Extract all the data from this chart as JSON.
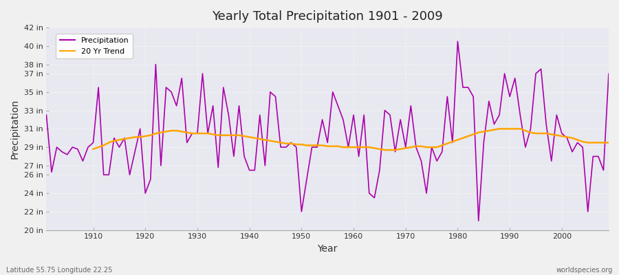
{
  "title": "Yearly Total Precipitation 1901 - 2009",
  "xlabel": "Year",
  "ylabel": "Precipitation",
  "subtitle": "Latitude 55.75 Longitude 22.25",
  "watermark": "worldspecies.org",
  "precip_color": "#aa00aa",
  "trend_color": "#FFA500",
  "bg_color": "#f0f0f0",
  "plot_bg_color": "#e8e8f0",
  "ylim": [
    20,
    42
  ],
  "yticks": [
    20,
    22,
    24,
    26,
    27,
    29,
    31,
    33,
    35,
    37,
    38,
    40,
    42
  ],
  "xticks": [
    1910,
    1920,
    1930,
    1940,
    1950,
    1960,
    1970,
    1980,
    1990,
    2000
  ],
  "xlim": [
    1901,
    2009
  ],
  "years": [
    1901,
    1902,
    1903,
    1904,
    1905,
    1906,
    1907,
    1908,
    1909,
    1910,
    1911,
    1912,
    1913,
    1914,
    1915,
    1916,
    1917,
    1918,
    1919,
    1920,
    1921,
    1922,
    1923,
    1924,
    1925,
    1926,
    1927,
    1928,
    1929,
    1930,
    1931,
    1932,
    1933,
    1934,
    1935,
    1936,
    1937,
    1938,
    1939,
    1940,
    1941,
    1942,
    1943,
    1944,
    1945,
    1946,
    1947,
    1948,
    1949,
    1950,
    1951,
    1952,
    1953,
    1954,
    1955,
    1956,
    1957,
    1958,
    1959,
    1960,
    1961,
    1962,
    1963,
    1964,
    1965,
    1966,
    1967,
    1968,
    1969,
    1970,
    1971,
    1972,
    1973,
    1974,
    1975,
    1976,
    1977,
    1978,
    1979,
    1980,
    1981,
    1982,
    1983,
    1984,
    1985,
    1986,
    1987,
    1988,
    1989,
    1990,
    1991,
    1992,
    1993,
    1994,
    1995,
    1996,
    1997,
    1998,
    1999,
    2000,
    2001,
    2002,
    2003,
    2004,
    2005,
    2006,
    2007,
    2008,
    2009
  ],
  "precip": [
    32.5,
    26.3,
    29.0,
    28.5,
    28.2,
    29.0,
    28.8,
    27.5,
    29.0,
    29.5,
    35.5,
    26.0,
    26.0,
    30.0,
    29.0,
    30.0,
    26.0,
    28.5,
    31.0,
    24.0,
    25.5,
    38.0,
    27.0,
    35.5,
    35.0,
    33.5,
    36.5,
    29.5,
    30.5,
    30.5,
    37.0,
    30.5,
    33.5,
    26.8,
    35.5,
    32.5,
    28.0,
    33.5,
    28.0,
    26.5,
    26.5,
    32.5,
    27.0,
    35.0,
    34.5,
    29.0,
    29.0,
    29.5,
    29.0,
    22.0,
    25.5,
    29.0,
    29.0,
    32.0,
    29.5,
    35.0,
    33.5,
    32.0,
    29.0,
    32.5,
    28.0,
    32.5,
    24.0,
    23.5,
    26.5,
    33.0,
    32.5,
    28.5,
    32.0,
    29.0,
    33.5,
    29.0,
    27.5,
    24.0,
    29.0,
    27.5,
    28.5,
    34.5,
    29.5,
    40.5,
    35.5,
    35.5,
    34.5,
    21.0,
    29.5,
    34.0,
    31.5,
    32.5,
    37.0,
    34.5,
    36.5,
    32.5,
    29.0,
    31.0,
    37.0,
    37.5,
    31.5,
    27.5,
    32.5,
    30.5,
    30.0,
    28.5,
    29.5,
    29.0,
    22.0,
    28.0,
    28.0,
    26.5,
    37.0
  ],
  "trend": [
    null,
    null,
    null,
    null,
    null,
    null,
    null,
    null,
    null,
    28.8,
    29.0,
    29.2,
    29.5,
    29.7,
    29.8,
    29.9,
    30.0,
    30.1,
    30.1,
    30.2,
    30.3,
    30.5,
    30.6,
    30.7,
    30.8,
    30.8,
    30.7,
    30.6,
    30.5,
    30.5,
    30.5,
    30.5,
    30.4,
    30.3,
    30.3,
    30.3,
    30.3,
    30.3,
    30.2,
    30.1,
    30.0,
    29.9,
    29.8,
    29.7,
    29.6,
    29.5,
    29.4,
    29.4,
    29.3,
    29.3,
    29.2,
    29.2,
    29.2,
    29.2,
    29.1,
    29.1,
    29.1,
    29.0,
    29.0,
    29.0,
    29.0,
    29.0,
    29.0,
    28.9,
    28.8,
    28.7,
    28.7,
    28.7,
    28.8,
    28.9,
    29.0,
    29.1,
    29.1,
    29.0,
    29.0,
    29.0,
    29.2,
    29.4,
    29.6,
    29.8,
    30.0,
    30.2,
    30.4,
    30.6,
    30.7,
    30.8,
    30.9,
    31.0,
    31.0,
    31.0,
    31.0,
    31.0,
    30.8,
    30.6,
    30.5,
    30.5,
    30.5,
    30.4,
    30.3,
    30.2,
    30.1,
    30.0,
    29.8,
    29.6,
    29.5,
    29.5,
    29.5,
    29.5,
    29.5
  ]
}
